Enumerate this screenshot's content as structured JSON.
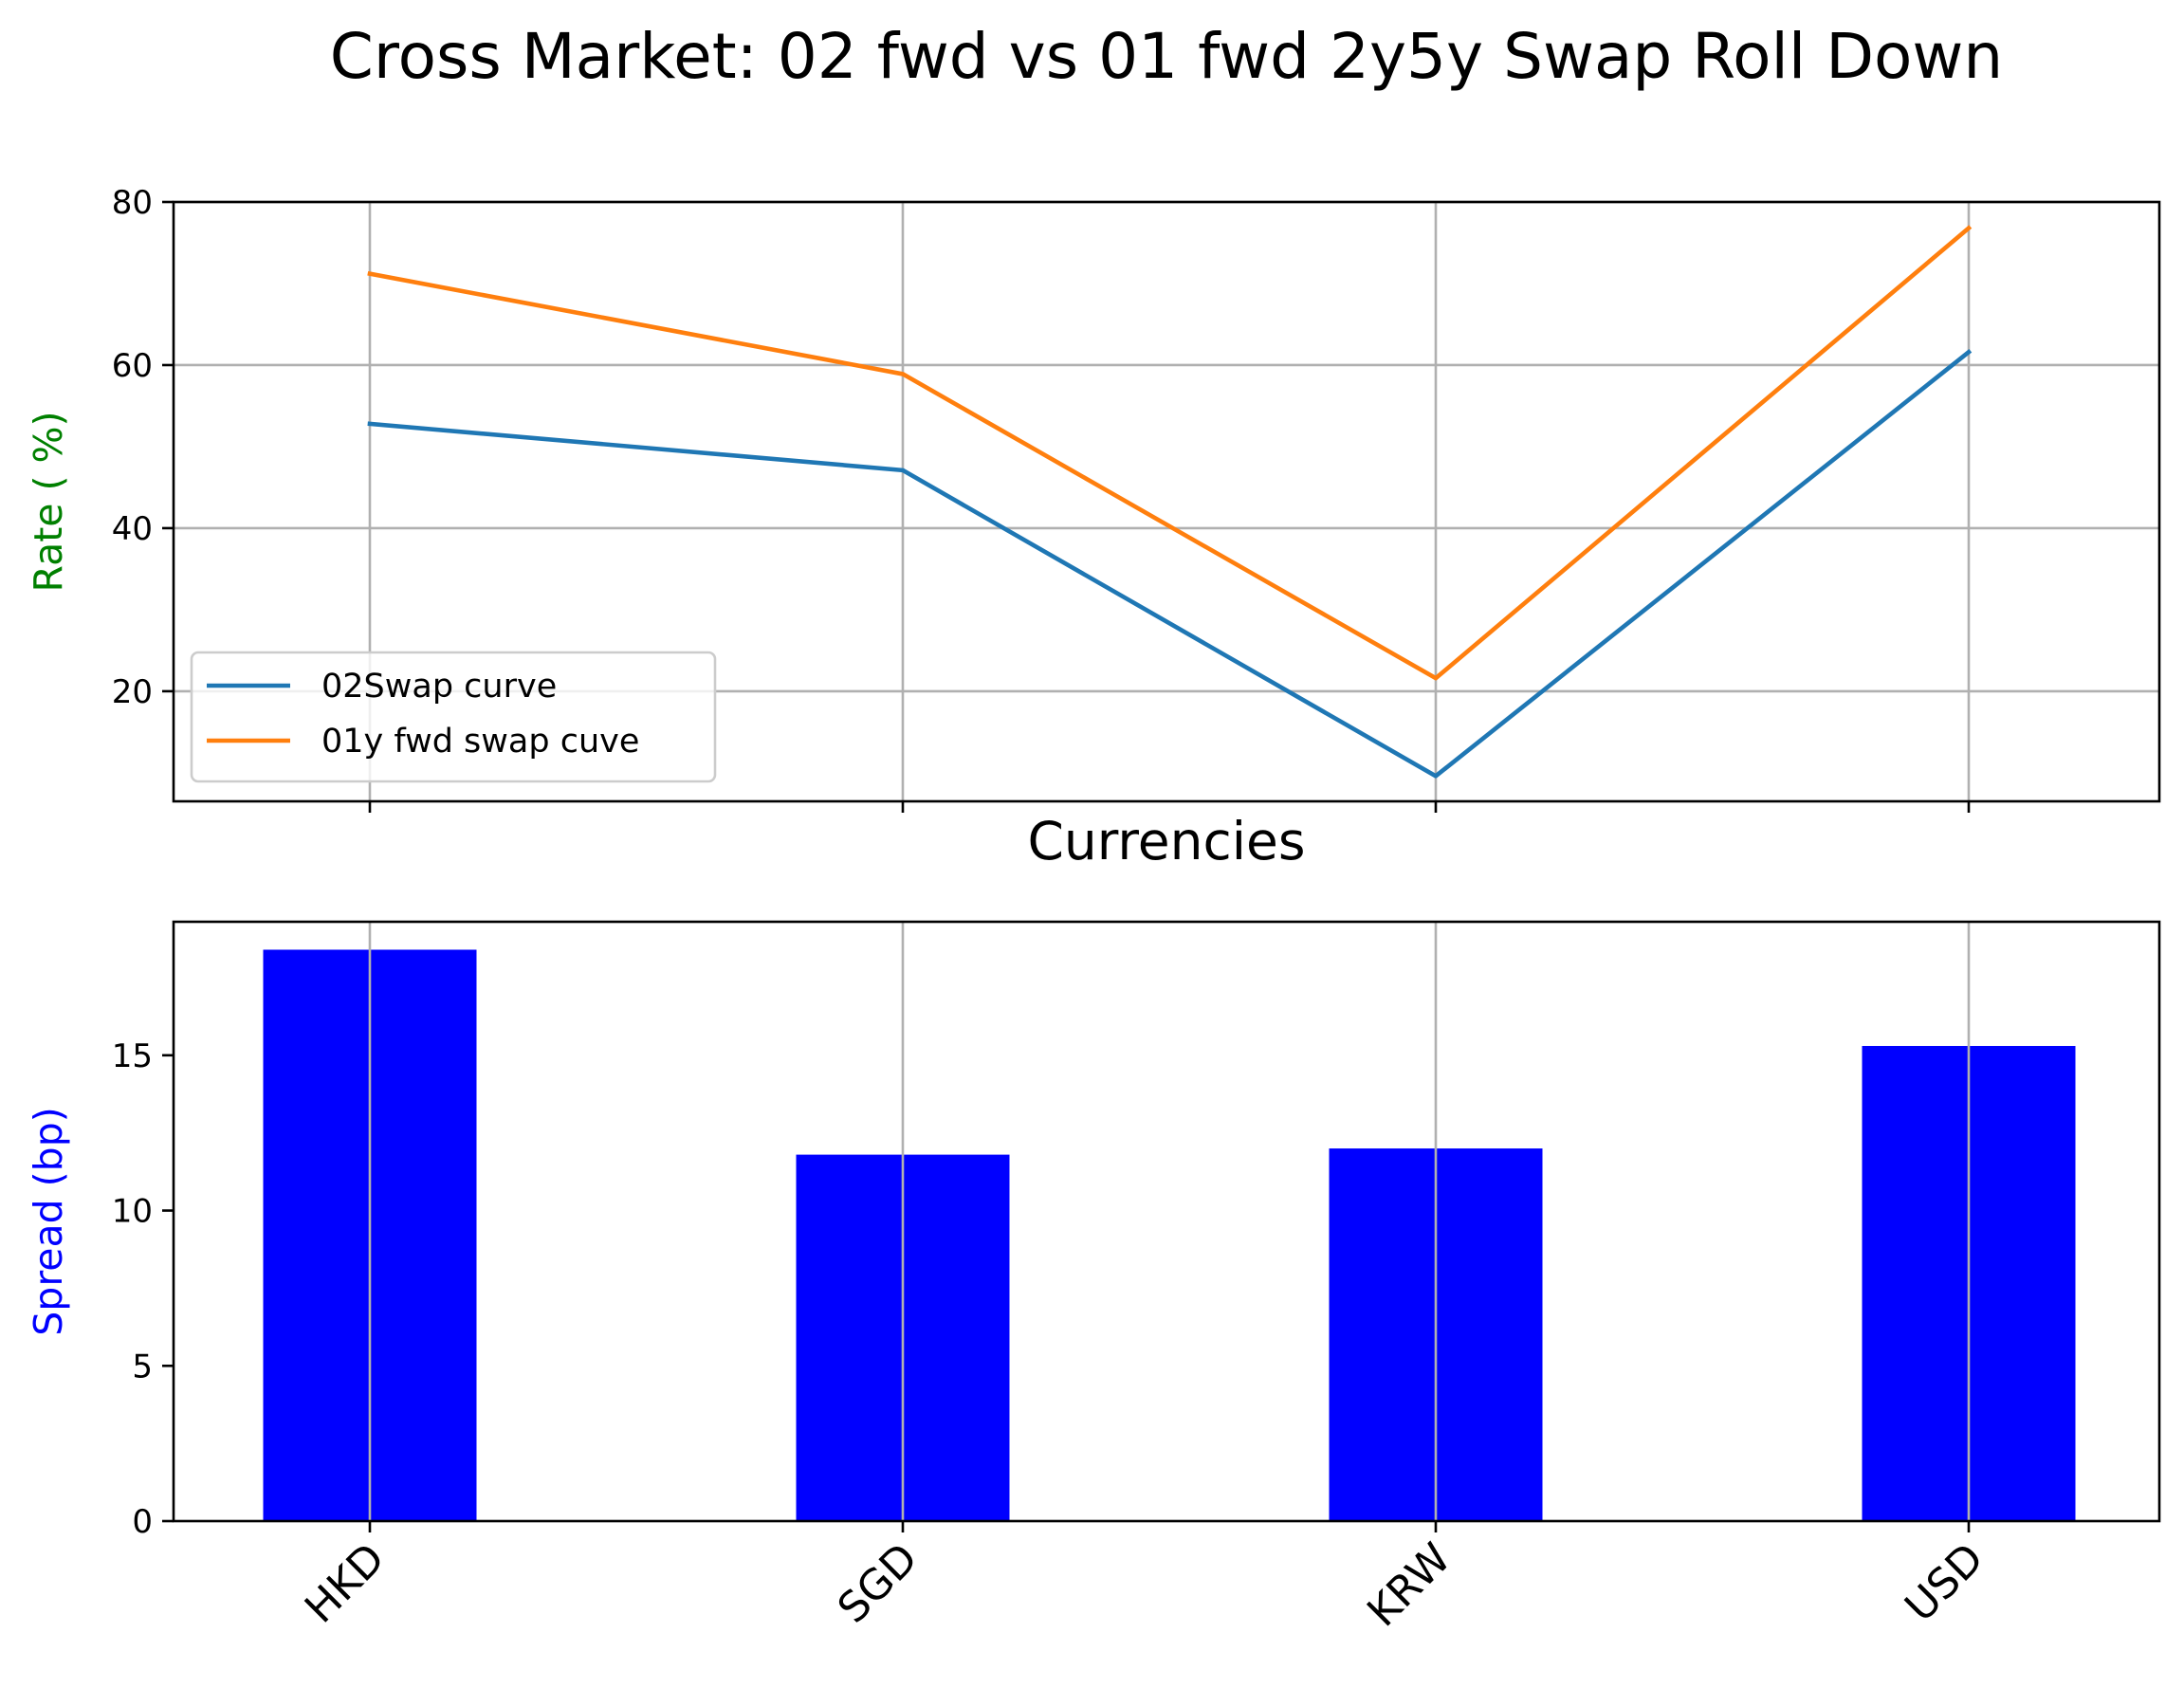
{
  "figure": {
    "title": "Cross Market: 02 fwd vs 01 fwd 2y5y Swap Roll Down"
  },
  "colors": {
    "series_02": "#1f77b4",
    "series_01": "#ff7f0e",
    "bars": "#0000ff",
    "rate_label": "#008000",
    "spread_label": "#0000ff"
  },
  "chart_data": [
    {
      "type": "line",
      "title": "",
      "xlabel": "Currencies",
      "ylabel": "Rate  ( %)",
      "categories": [
        "HKD",
        "SGD",
        "KRW",
        "USD"
      ],
      "ylim": [
        6.5,
        80
      ],
      "yticks": [
        20,
        40,
        60,
        80
      ],
      "grid": true,
      "legend_position": "lower-left",
      "series": [
        {
          "name": "02Swap curve",
          "values": [
            52.8,
            47.1,
            9.6,
            61.6
          ]
        },
        {
          "name": "01y fwd swap cuve",
          "values": [
            71.2,
            58.9,
            21.6,
            76.8
          ]
        }
      ]
    },
    {
      "type": "bar",
      "title": "",
      "xlabel": "",
      "ylabel": "Spread (bp)",
      "categories": [
        "HKD",
        "SGD",
        "KRW",
        "USD"
      ],
      "values": [
        18.4,
        11.8,
        12.0,
        15.3
      ],
      "ylim": [
        0,
        19.3
      ],
      "yticks": [
        0,
        5,
        10,
        15
      ],
      "grid": true
    }
  ]
}
